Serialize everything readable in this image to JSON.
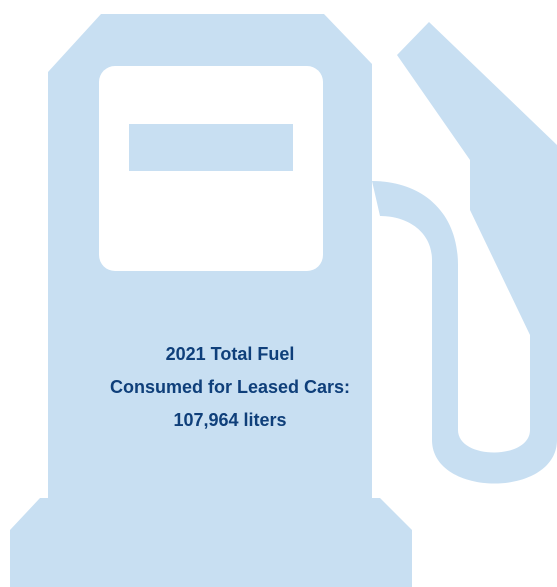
{
  "colors": {
    "pump_fill": "#c8dff2",
    "screen_fill": "#ffffff",
    "text": "#0f3f7a",
    "background": "#ffffff"
  },
  "icon": "fuel-pump-icon",
  "caption": {
    "line1": "2021 Total Fuel",
    "line2": "Consumed for Leased Cars:",
    "line3": "107,964 liters"
  }
}
